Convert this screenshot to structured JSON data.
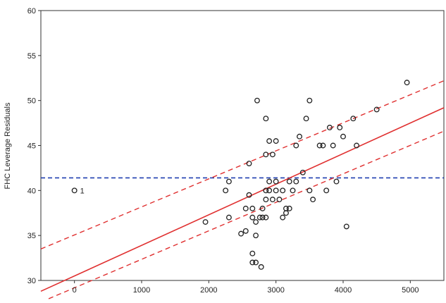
{
  "chart_data": {
    "type": "scatter",
    "title": "",
    "xlabel": "",
    "ylabel": "FHC Leverage Residuals",
    "xlim": [
      -500,
      5500
    ],
    "ylim": [
      30,
      60
    ],
    "xticks": [
      0,
      1000,
      2000,
      3000,
      4000,
      5000
    ],
    "yticks": [
      30,
      35,
      40,
      45,
      50,
      55,
      60
    ],
    "xtick_labels": [
      "0",
      "1000",
      "2000",
      "3000",
      "4000",
      "5000"
    ],
    "ytick_labels": [
      "30",
      "35",
      "40",
      "45",
      "50",
      "55",
      "60"
    ],
    "grid": false,
    "legend": "none",
    "mean_line": {
      "y": 41.4,
      "color": "#1f3fb0",
      "style": "dashed"
    },
    "fit_line": {
      "intercept": 30.5,
      "slope": 0.0034,
      "color": "#e03030"
    },
    "confidence_band": {
      "color": "#e03030",
      "style": "dashed",
      "upper": [
        [
          -500,
          33.5
        ],
        [
          5500,
          52.2
        ]
      ],
      "lower": [
        [
          -500,
          27.6
        ],
        [
          5500,
          46.6
        ]
      ]
    },
    "colors": {
      "points": "#222222",
      "fit": "#e03030",
      "mean": "#1f3fb0"
    },
    "labeled_points": [
      {
        "x": 0,
        "y": 40,
        "label": "1"
      }
    ],
    "series": [
      {
        "points": [
          [
            2300,
            41
          ],
          [
            2250,
            40
          ],
          [
            2300,
            37
          ],
          [
            1950,
            36.5
          ],
          [
            2480,
            35.2
          ],
          [
            2550,
            35.5
          ],
          [
            2550,
            38
          ],
          [
            2600,
            43
          ],
          [
            2600,
            39.5
          ],
          [
            2650,
            37
          ],
          [
            2650,
            38
          ],
          [
            2700,
            36.5
          ],
          [
            2700,
            35
          ],
          [
            2650,
            32
          ],
          [
            2700,
            32
          ],
          [
            2780,
            31.5
          ],
          [
            2720,
            50
          ],
          [
            2760,
            37
          ],
          [
            2800,
            37
          ],
          [
            2850,
            37
          ],
          [
            2800,
            38
          ],
          [
            2850,
            39
          ],
          [
            2850,
            40
          ],
          [
            2900,
            40
          ],
          [
            2850,
            44
          ],
          [
            2900,
            45.5
          ],
          [
            2950,
            39
          ],
          [
            3000,
            40
          ],
          [
            2950,
            44
          ],
          [
            2850,
            48
          ],
          [
            3000,
            45.5
          ],
          [
            3050,
            39
          ],
          [
            3100,
            40
          ],
          [
            3100,
            37
          ],
          [
            3150,
            37.5
          ],
          [
            3200,
            38
          ],
          [
            3200,
            41
          ],
          [
            3250,
            40
          ],
          [
            3300,
            45
          ],
          [
            3350,
            46
          ],
          [
            3300,
            41
          ],
          [
            3450,
            48
          ],
          [
            3500,
            50
          ],
          [
            3400,
            42
          ],
          [
            3500,
            40
          ],
          [
            3550,
            39
          ],
          [
            3650,
            45
          ],
          [
            3700,
            45
          ],
          [
            3750,
            40
          ],
          [
            3800,
            47
          ],
          [
            3850,
            45
          ],
          [
            3900,
            41
          ],
          [
            3950,
            47
          ],
          [
            4000,
            46
          ],
          [
            4050,
            36
          ],
          [
            4150,
            48
          ],
          [
            4200,
            45
          ],
          [
            4500,
            49
          ],
          [
            4950,
            52
          ],
          [
            3000,
            41
          ],
          [
            3150,
            38
          ],
          [
            2650,
            33
          ],
          [
            2900,
            41
          ]
        ]
      }
    ]
  }
}
